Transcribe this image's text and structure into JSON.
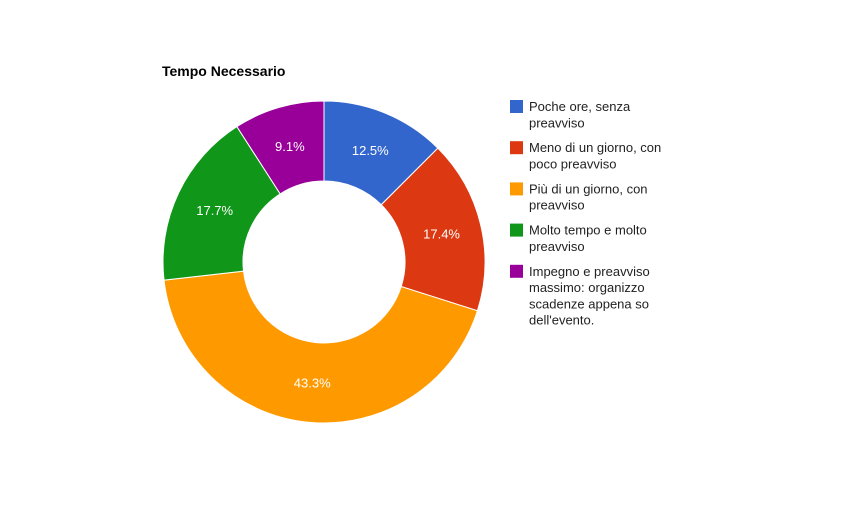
{
  "chart_data": {
    "type": "pie",
    "donut": true,
    "title": "Tempo Necessario",
    "legend_position": "right",
    "slices": [
      {
        "label_lines": [
          "Poche ore, senza",
          "preavviso"
        ],
        "value": 12.5,
        "display": "12.5%",
        "color": "#3366cc"
      },
      {
        "label_lines": [
          "Meno di un giorno, con",
          "poco preavviso"
        ],
        "value": 17.4,
        "display": "17.4%",
        "color": "#dc3912"
      },
      {
        "label_lines": [
          "Più di un giorno, con",
          "preavviso"
        ],
        "value": 43.3,
        "display": "43.3%",
        "color": "#ff9900"
      },
      {
        "label_lines": [
          "Molto tempo e molto",
          "preavviso"
        ],
        "value": 17.7,
        "display": "17.7%",
        "color": "#109618"
      },
      {
        "label_lines": [
          "Impegno e preavviso",
          "massimo: organizzo",
          "scadenze appena so",
          "dell'evento."
        ],
        "value": 9.1,
        "display": "9.1%",
        "color": "#990099"
      }
    ]
  }
}
